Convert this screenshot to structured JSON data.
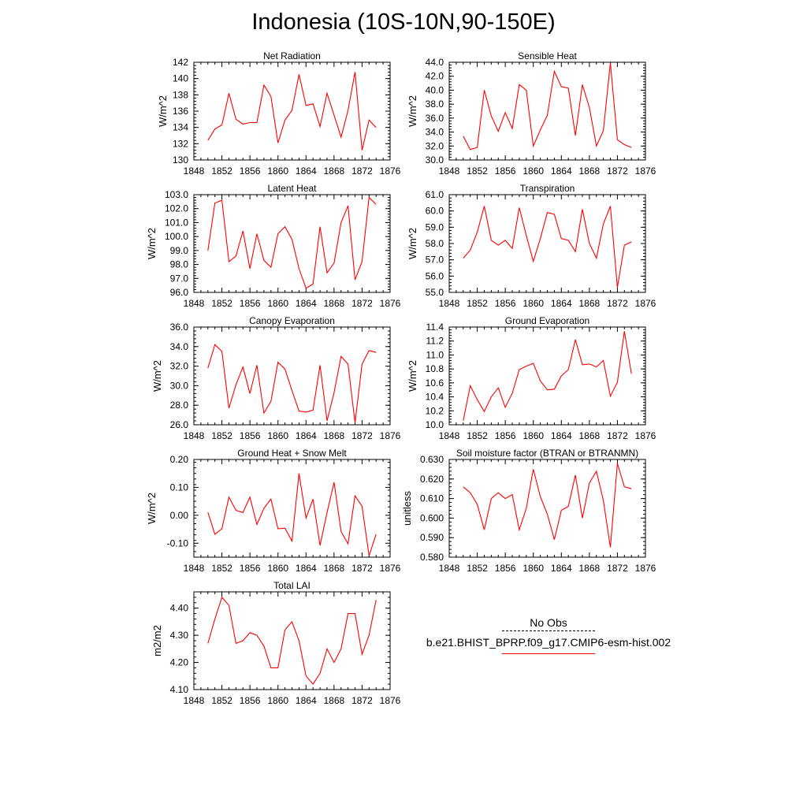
{
  "title": "Indonesia (10S-10N,90-150E)",
  "legend": {
    "entries": [
      {
        "label": "No Obs",
        "color": "#000000",
        "style": "dashed"
      },
      {
        "label": "b.e21.BHIST_BPRP.f09_g17.CMIP6-esm-hist.002",
        "color": "#ff0000",
        "style": "solid"
      }
    ]
  },
  "chart_data": [
    {
      "type": "line",
      "title": "Net Radiation",
      "ylabel": "W/m^2",
      "xlim": [
        1848,
        1876
      ],
      "ylim": [
        130,
        142
      ],
      "xticks": [
        "1848",
        "1852",
        "1856",
        "1860",
        "1864",
        "1868",
        "1872",
        "1876"
      ],
      "yticks": [
        "130",
        "132",
        "134",
        "136",
        "138",
        "140",
        "142"
      ],
      "series": [
        {
          "color": "#ff0000",
          "x": [
            1850,
            1851,
            1852,
            1853,
            1854,
            1855,
            1856,
            1857,
            1858,
            1859,
            1860,
            1861,
            1862,
            1863,
            1864,
            1865,
            1866,
            1867,
            1868,
            1869,
            1870,
            1871,
            1872,
            1873,
            1874
          ],
          "values": [
            132.4,
            133.8,
            134.3,
            138.2,
            135.0,
            134.4,
            134.6,
            134.6,
            139.2,
            137.8,
            132.1,
            134.9,
            136.1,
            140.5,
            136.7,
            136.9,
            134.1,
            138.2,
            135.5,
            132.8,
            136.1,
            140.8,
            131.2,
            134.9,
            134.0
          ]
        }
      ]
    },
    {
      "type": "line",
      "title": "Sensible Heat",
      "ylabel": "W/m^2",
      "xlim": [
        1848,
        1876
      ],
      "ylim": [
        30,
        44
      ],
      "xticks": [
        "1848",
        "1852",
        "1856",
        "1860",
        "1864",
        "1868",
        "1872",
        "1876"
      ],
      "yticks": [
        "30.0",
        "32.0",
        "34.0",
        "36.0",
        "38.0",
        "40.0",
        "42.0",
        "44.0"
      ],
      "series": [
        {
          "color": "#ff0000",
          "x": [
            1850,
            1851,
            1852,
            1853,
            1854,
            1855,
            1856,
            1857,
            1858,
            1859,
            1860,
            1861,
            1862,
            1863,
            1864,
            1865,
            1866,
            1867,
            1868,
            1869,
            1870,
            1871,
            1872,
            1873,
            1874
          ],
          "values": [
            33.4,
            31.5,
            31.8,
            40.0,
            36.3,
            34.1,
            36.8,
            34.5,
            40.8,
            40.0,
            32.0,
            34.3,
            36.4,
            42.7,
            40.5,
            40.3,
            33.5,
            40.8,
            37.5,
            32.0,
            34.2,
            43.9,
            32.9,
            32.2,
            31.8
          ]
        }
      ]
    },
    {
      "type": "line",
      "title": "Latent Heat",
      "ylabel": "W/m^2",
      "xlim": [
        1848,
        1876
      ],
      "ylim": [
        96,
        103
      ],
      "xticks": [
        "1848",
        "1852",
        "1856",
        "1860",
        "1864",
        "1868",
        "1872",
        "1876"
      ],
      "yticks": [
        "96.0",
        "97.0",
        "98.0",
        "99.0",
        "100.0",
        "101.0",
        "102.0",
        "103.0"
      ],
      "series": [
        {
          "color": "#ff0000",
          "x": [
            1850,
            1851,
            1852,
            1853,
            1854,
            1855,
            1856,
            1857,
            1858,
            1859,
            1860,
            1861,
            1862,
            1863,
            1864,
            1865,
            1866,
            1867,
            1868,
            1869,
            1870,
            1871,
            1872,
            1873,
            1874
          ],
          "values": [
            99.0,
            102.4,
            102.6,
            98.2,
            98.6,
            100.4,
            97.7,
            100.2,
            98.3,
            97.8,
            100.2,
            100.7,
            99.8,
            97.7,
            96.3,
            96.6,
            100.7,
            97.4,
            98.1,
            101.0,
            102.2,
            96.9,
            98.2,
            102.8,
            102.3
          ]
        }
      ]
    },
    {
      "type": "line",
      "title": "Transpiration",
      "ylabel": "W/m^2",
      "xlim": [
        1848,
        1876
      ],
      "ylim": [
        55,
        61
      ],
      "xticks": [
        "1848",
        "1852",
        "1856",
        "1860",
        "1864",
        "1868",
        "1872",
        "1876"
      ],
      "yticks": [
        "55.0",
        "56.0",
        "57.0",
        "58.0",
        "59.0",
        "60.0",
        "61.0"
      ],
      "series": [
        {
          "color": "#ff0000",
          "x": [
            1850,
            1851,
            1852,
            1853,
            1854,
            1855,
            1856,
            1857,
            1858,
            1859,
            1860,
            1861,
            1862,
            1863,
            1864,
            1865,
            1866,
            1867,
            1868,
            1869,
            1870,
            1871,
            1872,
            1873,
            1874
          ],
          "values": [
            57.1,
            57.6,
            58.7,
            60.3,
            58.2,
            57.9,
            58.2,
            57.7,
            60.2,
            58.5,
            56.9,
            58.3,
            59.9,
            59.8,
            58.3,
            58.2,
            57.5,
            60.1,
            58.0,
            57.1,
            59.2,
            60.3,
            55.3,
            57.9,
            58.1
          ]
        }
      ]
    },
    {
      "type": "line",
      "title": "Canopy Evaporation",
      "ylabel": "W/m^2",
      "xlim": [
        1848,
        1876
      ],
      "ylim": [
        26,
        36
      ],
      "xticks": [
        "1848",
        "1852",
        "1856",
        "1860",
        "1864",
        "1868",
        "1872",
        "1876"
      ],
      "yticks": [
        "26.0",
        "28.0",
        "30.0",
        "32.0",
        "34.0",
        "36.0"
      ],
      "series": [
        {
          "color": "#ff0000",
          "x": [
            1850,
            1851,
            1852,
            1853,
            1854,
            1855,
            1856,
            1857,
            1858,
            1859,
            1860,
            1861,
            1862,
            1863,
            1864,
            1865,
            1866,
            1867,
            1868,
            1869,
            1870,
            1871,
            1872,
            1873,
            1874
          ],
          "values": [
            31.8,
            34.2,
            33.5,
            27.7,
            30.1,
            31.9,
            29.2,
            32.1,
            27.2,
            28.4,
            32.4,
            31.7,
            29.5,
            27.4,
            27.3,
            27.5,
            32.1,
            26.4,
            29.3,
            33.0,
            32.2,
            26.2,
            32.2,
            33.6,
            33.4
          ]
        }
      ]
    },
    {
      "type": "line",
      "title": "Ground Evaporation",
      "ylabel": "W/m^2",
      "xlim": [
        1848,
        1876
      ],
      "ylim": [
        10.0,
        11.4
      ],
      "xticks": [
        "1848",
        "1852",
        "1856",
        "1860",
        "1864",
        "1868",
        "1872",
        "1876"
      ],
      "yticks": [
        "10.0",
        "10.2",
        "10.4",
        "10.6",
        "10.8",
        "11.0",
        "11.2",
        "11.4"
      ],
      "series": [
        {
          "color": "#ff0000",
          "x": [
            1850,
            1851,
            1852,
            1853,
            1854,
            1855,
            1856,
            1857,
            1858,
            1859,
            1860,
            1861,
            1862,
            1863,
            1864,
            1865,
            1866,
            1867,
            1868,
            1869,
            1870,
            1871,
            1872,
            1873,
            1874
          ],
          "values": [
            10.06,
            10.56,
            10.36,
            10.19,
            10.4,
            10.53,
            10.25,
            10.45,
            10.79,
            10.84,
            10.88,
            10.63,
            10.5,
            10.51,
            10.7,
            10.79,
            11.22,
            10.86,
            10.87,
            10.83,
            10.92,
            10.41,
            10.61,
            11.34,
            10.73
          ]
        }
      ]
    },
    {
      "type": "line",
      "title": "Ground Heat + Snow Melt",
      "ylabel": "W/m^2",
      "xlim": [
        1848,
        1876
      ],
      "ylim": [
        -0.15,
        0.2
      ],
      "xticks": [
        "1848",
        "1852",
        "1856",
        "1860",
        "1864",
        "1868",
        "1872",
        "1876"
      ],
      "yticks": [
        "-0.10",
        "0.00",
        "0.10",
        "0.20"
      ],
      "series": [
        {
          "color": "#ff0000",
          "x": [
            1850,
            1851,
            1852,
            1853,
            1854,
            1855,
            1856,
            1857,
            1858,
            1859,
            1860,
            1861,
            1862,
            1863,
            1864,
            1865,
            1866,
            1867,
            1868,
            1869,
            1870,
            1871,
            1872,
            1873,
            1874
          ],
          "values": [
            0.01,
            -0.068,
            -0.048,
            0.065,
            0.018,
            0.01,
            0.065,
            -0.033,
            0.025,
            0.058,
            -0.048,
            -0.046,
            -0.092,
            0.15,
            -0.01,
            0.058,
            -0.108,
            0.01,
            0.118,
            -0.058,
            -0.102,
            0.07,
            0.032,
            -0.145,
            -0.068
          ]
        }
      ]
    },
    {
      "type": "line",
      "title": "Soil moisture factor (BTRAN or BTRANMN)",
      "ylabel": "unitless",
      "xlim": [
        1848,
        1876
      ],
      "ylim": [
        0.58,
        0.63
      ],
      "xticks": [
        "1848",
        "1852",
        "1856",
        "1860",
        "1864",
        "1868",
        "1872",
        "1876"
      ],
      "yticks": [
        "0.580",
        "0.590",
        "0.600",
        "0.610",
        "0.620",
        "0.630"
      ],
      "series": [
        {
          "color": "#ff0000",
          "x": [
            1850,
            1851,
            1852,
            1853,
            1854,
            1855,
            1856,
            1857,
            1858,
            1859,
            1860,
            1861,
            1862,
            1863,
            1864,
            1865,
            1866,
            1867,
            1868,
            1869,
            1870,
            1871,
            1872,
            1873,
            1874
          ],
          "values": [
            0.616,
            0.613,
            0.607,
            0.594,
            0.61,
            0.613,
            0.61,
            0.612,
            0.594,
            0.605,
            0.625,
            0.611,
            0.602,
            0.589,
            0.604,
            0.606,
            0.622,
            0.6,
            0.618,
            0.624,
            0.609,
            0.585,
            0.628,
            0.616,
            0.615
          ]
        }
      ]
    },
    {
      "type": "line",
      "title": "Total LAI",
      "ylabel": "m2/m2",
      "xlim": [
        1848,
        1876
      ],
      "ylim": [
        4.1,
        4.46
      ],
      "xticks": [
        "1848",
        "1852",
        "1856",
        "1860",
        "1864",
        "1868",
        "1872",
        "1876"
      ],
      "yticks": [
        "4.10",
        "4.20",
        "4.30",
        "4.40"
      ],
      "series": [
        {
          "color": "#ff0000",
          "x": [
            1850,
            1851,
            1852,
            1853,
            1854,
            1855,
            1856,
            1857,
            1858,
            1859,
            1860,
            1861,
            1862,
            1863,
            1864,
            1865,
            1866,
            1867,
            1868,
            1869,
            1870,
            1871,
            1872,
            1873,
            1874
          ],
          "values": [
            4.27,
            4.36,
            4.44,
            4.41,
            4.27,
            4.28,
            4.31,
            4.3,
            4.26,
            4.18,
            4.18,
            4.32,
            4.35,
            4.28,
            4.15,
            4.12,
            4.16,
            4.25,
            4.2,
            4.25,
            4.38,
            4.38,
            4.23,
            4.3,
            4.43
          ]
        }
      ]
    }
  ]
}
